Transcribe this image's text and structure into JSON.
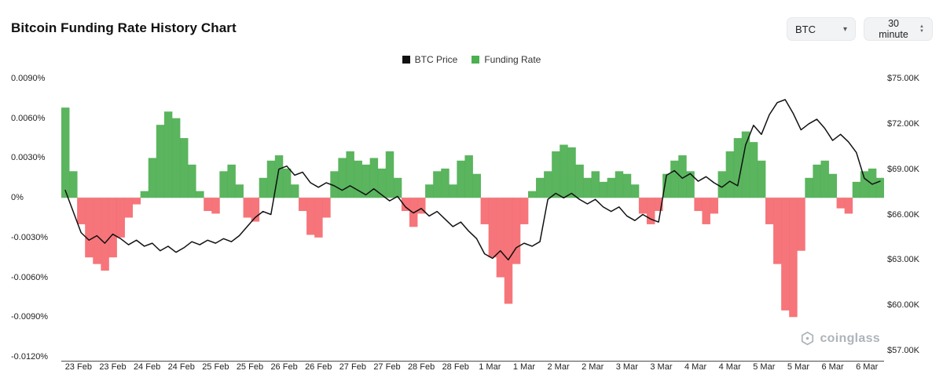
{
  "header": {
    "title": "Bitcoin Funding Rate History Chart"
  },
  "controls": {
    "symbol_select": "BTC",
    "interval_select": "30 minute"
  },
  "legend": [
    {
      "label": "BTC Price",
      "color": "#111111"
    },
    {
      "label": "Funding Rate",
      "color": "#4caf50"
    }
  ],
  "watermark": "coinglass",
  "chart_data": {
    "type": "mixed",
    "x_tick_labels": [
      "23 Feb",
      "23 Feb",
      "24 Feb",
      "24 Feb",
      "25 Feb",
      "25 Feb",
      "26 Feb",
      "26 Feb",
      "27 Feb",
      "27 Feb",
      "28 Feb",
      "28 Feb",
      "1 Mar",
      "1 Mar",
      "2 Mar",
      "2 Mar",
      "3 Mar",
      "3 Mar",
      "4 Mar",
      "4 Mar",
      "5 Mar",
      "5 Mar",
      "6 Mar",
      "6 Mar"
    ],
    "left_axis": {
      "label": "Funding Rate",
      "unit": "%",
      "max": 0.009,
      "min": -0.012,
      "ticks": [
        "0.0090%",
        "0.0060%",
        "0.0030%",
        "0%",
        "-0.0030%",
        "-0.0060%",
        "-0.0090%",
        "-0.0120%"
      ],
      "tick_values": [
        0.009,
        0.006,
        0.003,
        0,
        -0.003,
        -0.006,
        -0.009,
        -0.012
      ]
    },
    "right_axis": {
      "label": "BTC Price",
      "unit": "$K",
      "max": 75,
      "min": 57,
      "ticks": [
        "$75.00K",
        "$72.00K",
        "$69.00K",
        "$66.00K",
        "$63.00K",
        "$60.00K",
        "$57.00K"
      ],
      "tick_values": [
        75,
        72,
        69,
        66,
        63,
        60,
        57
      ]
    },
    "series": [
      {
        "name": "Funding Rate",
        "type": "bar",
        "unit": "%",
        "color_positive": "#4caf50",
        "color_negative": "#f5696f",
        "values": [
          0.0068,
          0.002,
          -0.002,
          -0.0045,
          -0.005,
          -0.0055,
          -0.0045,
          -0.003,
          -0.0015,
          -0.0005,
          0.0005,
          0.003,
          0.0055,
          0.0065,
          0.006,
          0.0045,
          0.0025,
          0.0005,
          -0.001,
          -0.0012,
          0.002,
          0.0025,
          0.001,
          -0.0015,
          -0.0018,
          0.0015,
          0.0028,
          0.0032,
          0.0022,
          0.001,
          -0.001,
          -0.0028,
          -0.003,
          -0.0015,
          0.002,
          0.003,
          0.0035,
          0.0028,
          0.0025,
          0.003,
          0.0022,
          0.0035,
          0.0015,
          -0.001,
          -0.0022,
          -0.0012,
          0.001,
          0.002,
          0.0022,
          0.001,
          0.0028,
          0.0032,
          0.0018,
          -0.002,
          -0.0045,
          -0.006,
          -0.008,
          -0.005,
          -0.002,
          0.0005,
          0.0015,
          0.002,
          0.0035,
          0.004,
          0.0038,
          0.0025,
          0.0015,
          0.002,
          0.0012,
          0.0015,
          0.002,
          0.0018,
          0.001,
          -0.0012,
          -0.002,
          -0.001,
          0.0018,
          0.0028,
          0.0032,
          0.002,
          -0.001,
          -0.002,
          -0.0012,
          0.002,
          0.0035,
          0.0045,
          0.005,
          0.0042,
          0.0028,
          -0.002,
          -0.005,
          -0.0085,
          -0.009,
          -0.004,
          0.0015,
          0.0025,
          0.0028,
          0.0018,
          -0.0008,
          -0.0012,
          0.0012,
          0.002,
          0.0022,
          0.0015
        ]
      },
      {
        "name": "BTC Price",
        "type": "line",
        "unit": "$K",
        "color": "#111111",
        "values": [
          67.6,
          66.2,
          64.8,
          64.3,
          64.6,
          64.1,
          64.7,
          64.4,
          64.0,
          64.3,
          63.9,
          64.1,
          63.6,
          63.9,
          63.5,
          63.8,
          64.2,
          64.0,
          64.3,
          64.1,
          64.4,
          64.2,
          64.6,
          65.2,
          65.8,
          66.2,
          66.0,
          69.0,
          69.2,
          68.6,
          68.8,
          68.1,
          67.8,
          68.1,
          67.9,
          67.6,
          67.9,
          67.6,
          67.3,
          67.7,
          67.3,
          66.9,
          67.2,
          66.5,
          66.1,
          66.4,
          65.9,
          66.2,
          65.7,
          65.2,
          65.5,
          64.9,
          64.4,
          63.4,
          63.1,
          63.6,
          63.0,
          63.8,
          64.1,
          63.9,
          64.2,
          67.0,
          67.4,
          67.1,
          67.4,
          67.0,
          66.7,
          67.0,
          66.5,
          66.2,
          66.5,
          65.9,
          65.6,
          66.0,
          65.7,
          65.5,
          68.6,
          68.9,
          68.4,
          68.7,
          68.2,
          68.5,
          68.1,
          67.8,
          68.2,
          67.9,
          70.6,
          71.9,
          71.3,
          72.6,
          73.4,
          73.6,
          72.7,
          71.6,
          72.0,
          72.3,
          71.7,
          70.9,
          71.3,
          70.8,
          70.1,
          68.4,
          68.0,
          68.2
        ]
      }
    ]
  }
}
